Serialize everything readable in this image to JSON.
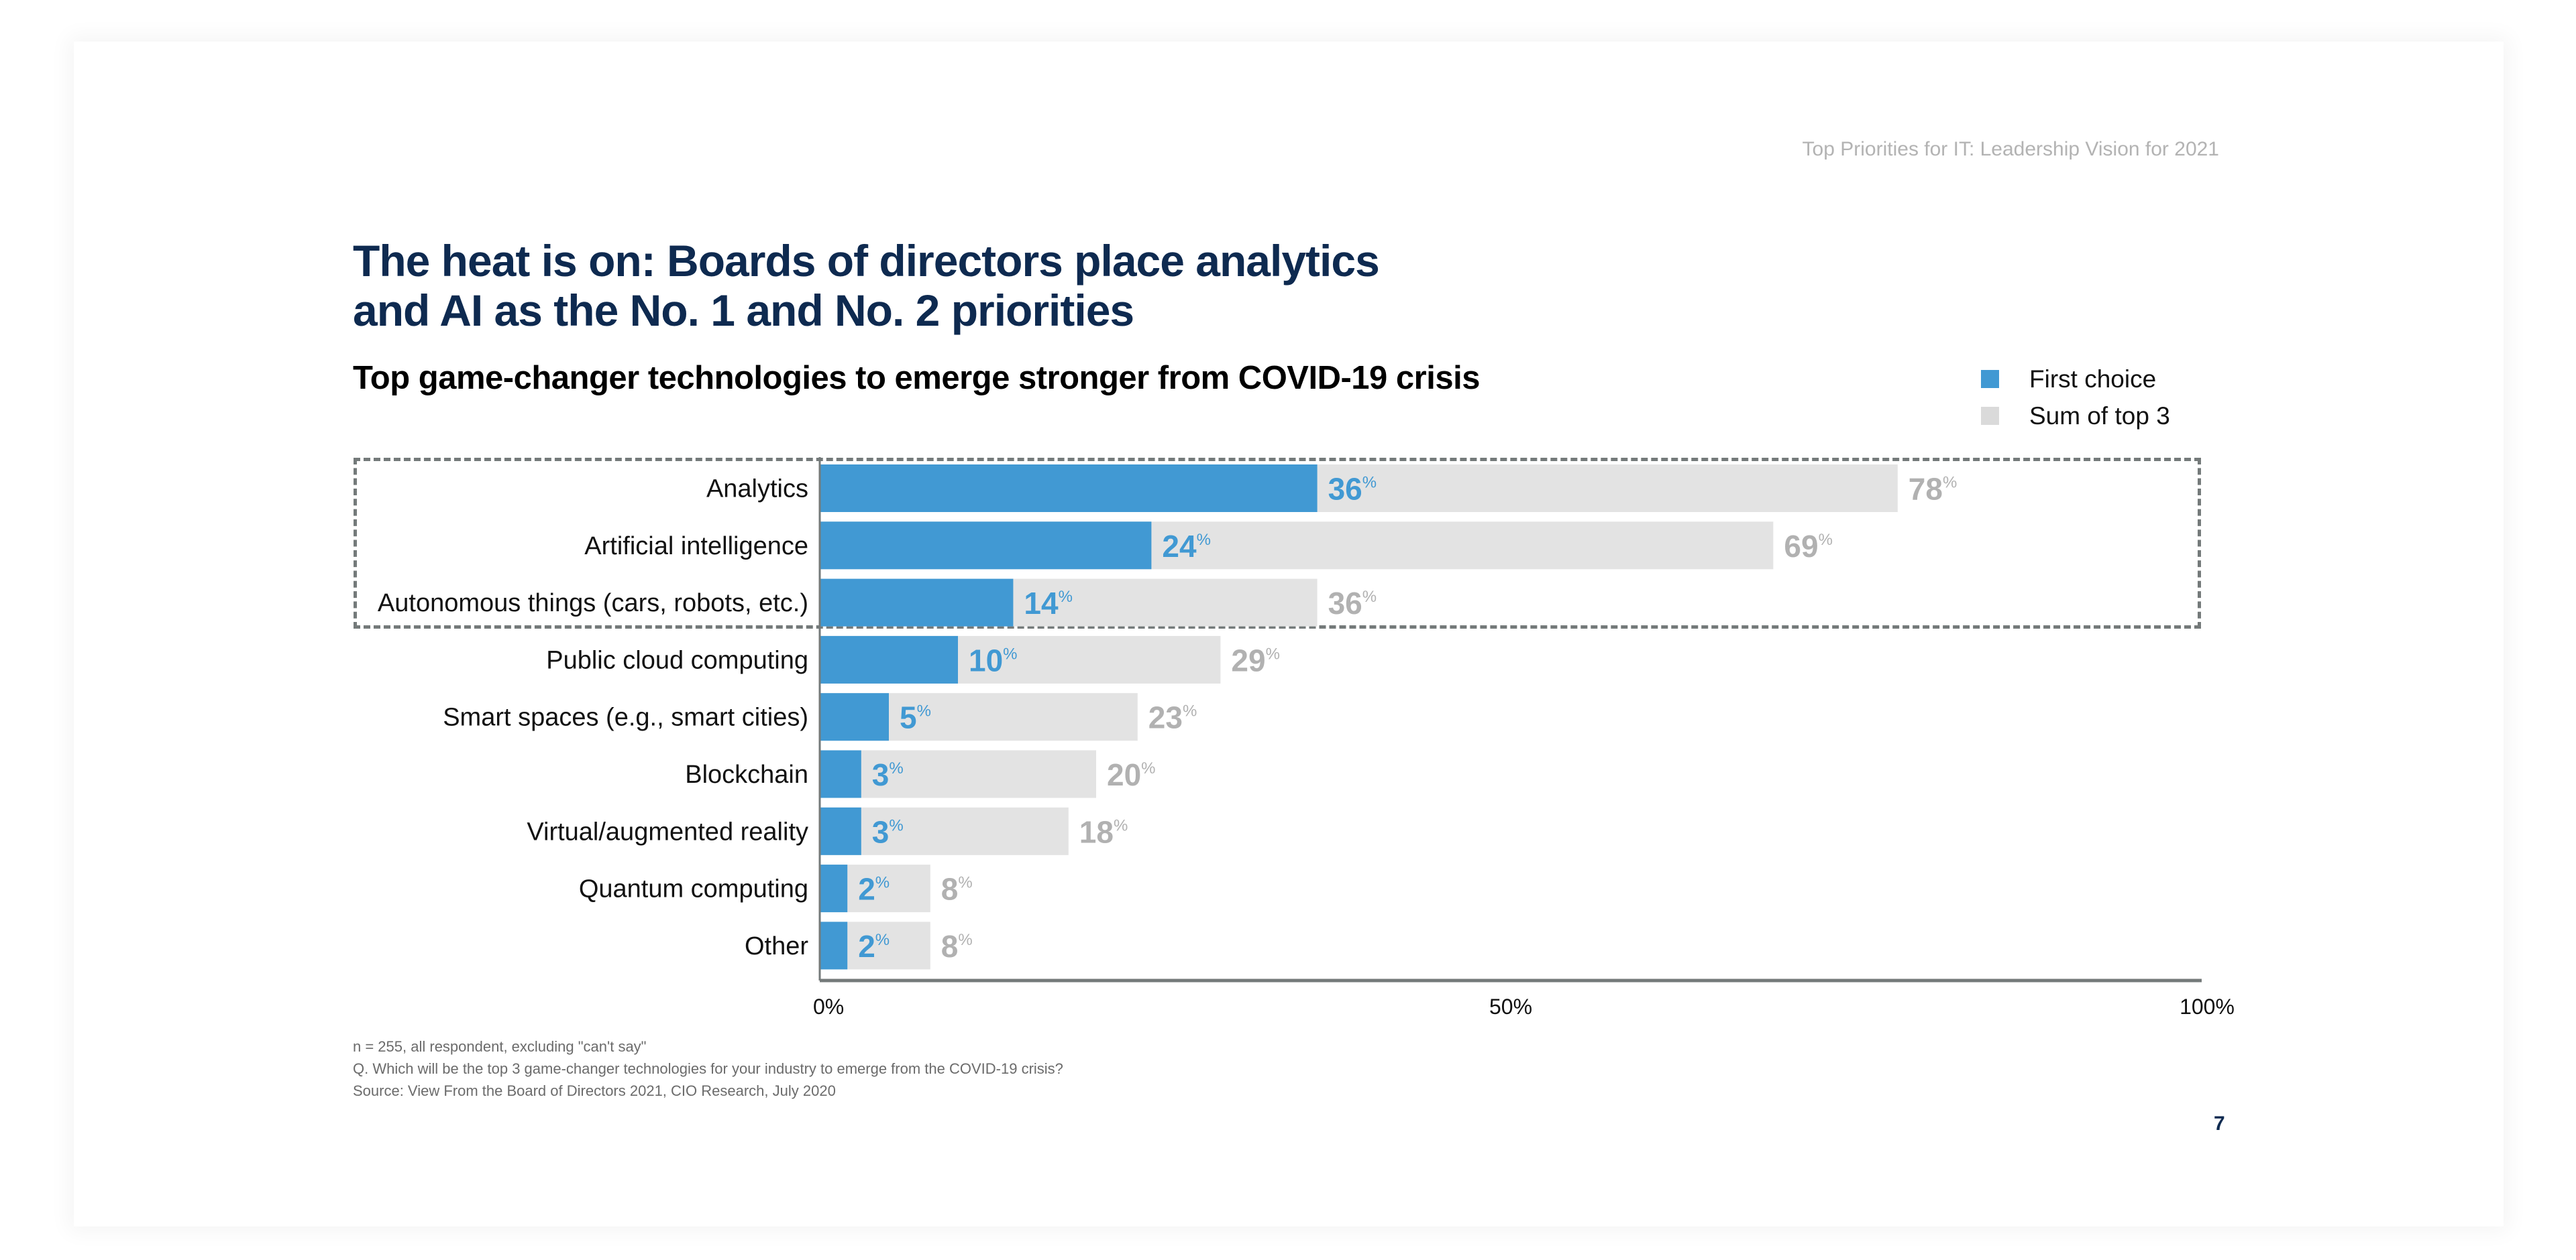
{
  "running_head": "Top Priorities for IT: Leadership Vision for 2021",
  "headline_line1": "The heat is on: Boards of directors place analytics",
  "headline_line2": "and AI as the No. 1 and No. 2 priorities",
  "colors": {
    "first_choice": "#4199d3",
    "sum_of_top3": "#e3e3e3",
    "first_choice_label": "#4199d3",
    "sum_label": "#b1b1b1",
    "headline": "#0e2a50",
    "highlight_box": "#747a7a"
  },
  "chart_data": {
    "type": "bar",
    "orientation": "horizontal",
    "title": "Top game-changer technologies to emerge stronger from COVID-19 crisis",
    "xlabel": "",
    "ylabel": "",
    "xlim": [
      0,
      100
    ],
    "x_ticks": [
      "0%",
      "50%",
      "100%"
    ],
    "grid": false,
    "legend_position": "top-right",
    "value_suffix": "%",
    "categories": [
      "Analytics",
      "Artificial intelligence",
      "Autonomous things (cars, robots, etc.)",
      "Public cloud computing",
      "Smart spaces (e.g., smart cities)",
      "Blockchain",
      "Virtual/augmented reality",
      "Quantum computing",
      "Other"
    ],
    "series": [
      {
        "name": "First choice",
        "values": [
          36,
          24,
          14,
          10,
          5,
          3,
          3,
          2,
          2
        ]
      },
      {
        "name": "Sum of top 3",
        "values": [
          78,
          69,
          36,
          29,
          23,
          20,
          18,
          8,
          8
        ]
      }
    ],
    "highlighted_categories": [
      "Analytics",
      "Artificial intelligence",
      "Autonomous things (cars, robots, etc.)"
    ]
  },
  "footnotes": [
    "n = 255, all respondent, excluding \"can't say\"",
    "Q. Which will be the top 3 game-changer technologies for your industry to emerge from the COVID-19 crisis?",
    "Source: View From the Board of Directors 2021, CIO Research, July 2020"
  ],
  "page_number": "7"
}
